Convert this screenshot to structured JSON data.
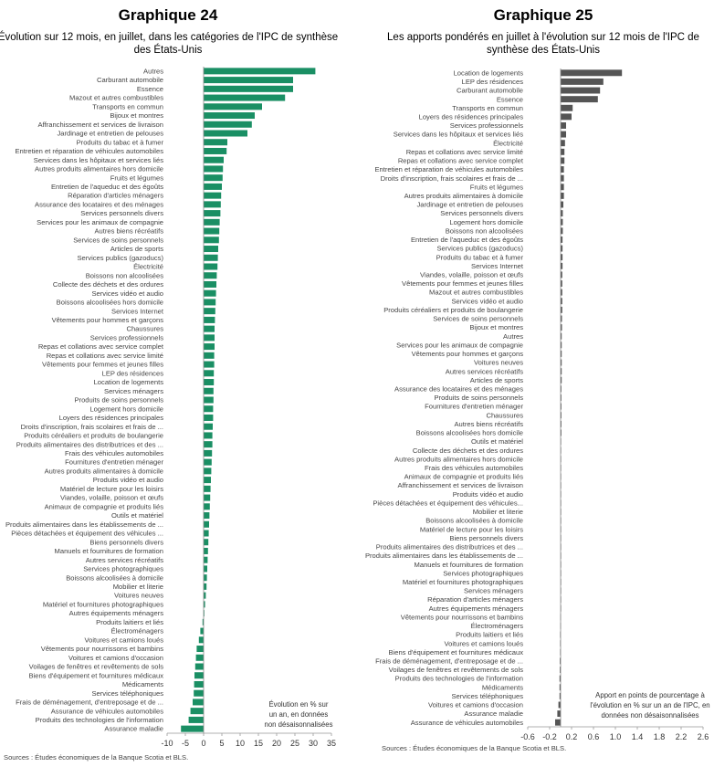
{
  "colors": {
    "chart24_bar": "#1a8f64",
    "chart25_bar": "#555555",
    "axis": "#999999"
  },
  "chart_data": [
    {
      "type": "bar",
      "orientation": "horizontal",
      "title": "Graphique 24",
      "subtitle": [
        "Évolution sur 12 mois, en juillet, dans les catégories de l'IPC de synthèse",
        "des États-Unis"
      ],
      "note": [
        "Évolution en % sur",
        "un an, en données",
        "non désaisonnalisées"
      ],
      "source": "Sources : Études économiques de la Banque Scotia et BLS.",
      "xlim": [
        -10,
        35
      ],
      "xticks": [
        -10,
        -5,
        0,
        5,
        10,
        15,
        20,
        25,
        30,
        35
      ],
      "categories": [
        "Autres",
        "Carburant automobile",
        "Essence",
        "Mazout et autres combustibles",
        "Transports en commun",
        "Bijoux et montres",
        "Affranchissement et services de livraison",
        "Jardinage et entretien de pelouses",
        "Produits du tabac et à fumer",
        "Entretien et réparation de véhicules automobiles",
        "Services dans les hôpitaux et services liés",
        "Autres produits alimentaires hors domicile",
        "Fruits et légumes",
        "Entretien de l'aqueduc et des égoûts",
        "Réparation d'articles ménagers",
        "Assurance des locataires et des ménages",
        "Services personnels divers",
        "Services pour les animaux de compagnie",
        "Autres biens récréatifs",
        "Services de soins personnels",
        "Articles de sports",
        "Services publics (gazoducs)",
        "Électricité",
        "Boissons non alcoolisées",
        "Collecte des déchets et des ordures",
        "Services vidéo et audio",
        "Boissons alcoolisées hors domicile",
        "Services Internet",
        "Vêtements pour hommes et garçons",
        "Chaussures",
        "Services professionnels",
        "Repas et collations avec service complet",
        "Repas et collations avec service limité",
        "Vêtements pour femmes et jeunes filles",
        "LEP des résidences",
        "Location de logements",
        "Services ménagers",
        "Produits de soins personnels",
        "Logement hors domicile",
        "Loyers des résidences principales",
        "Droits d'inscription, frais scolaires et frais de ...",
        "Produits céréaliers et produits de boulangerie",
        "Produits alimentaires des distributrices et des ...",
        "Frais des véhicules automobiles",
        "Fournitures d'entretien ménager",
        "Autres produits alimentaires à domicile",
        "Produits vidéo et audio",
        "Matériel de lecture pour les loisirs",
        "Viandes, volaille, poisson et œufs",
        "Animaux de compagnie et produits liés",
        "Outils et matériel",
        "Produits alimentaires dans les établissements de ...",
        "Pièces détachées et équipement des véhicules ...",
        "Biens personnels divers",
        "Manuels et fournitures de formation",
        "Autres services récréatifs",
        "Services photographiques",
        "Boissons alcoolisées à domicile",
        "Mobilier et literie",
        "Voitures neuves",
        "Matériel et fournitures photographiques",
        "Autres équipements ménagers",
        "Produits laitiers et liés",
        "Électroménagers",
        "Voitures et camions loués",
        "Vêtements pour nourrissons et bambins",
        "Voitures et camions d'occasion",
        "Voilages de fenêtres et revêtements de sols",
        "Biens d'équipement et fournitures médicaux",
        "Médicaments",
        "Services téléphoniques",
        "Frais de déménagement, d'entreposage et de ...",
        "Assurance de véhicules automobiles",
        "Produits des technologies de l'information",
        "Assurance maladie"
      ],
      "values": [
        30.6,
        24.5,
        24.5,
        22.3,
        16.0,
        14.0,
        13.2,
        12.0,
        6.5,
        6.3,
        5.5,
        5.3,
        5.2,
        5.0,
        4.8,
        4.7,
        4.6,
        4.4,
        4.3,
        4.2,
        4.0,
        3.9,
        3.8,
        3.6,
        3.5,
        3.4,
        3.3,
        3.2,
        3.1,
        3.0,
        3.0,
        3.0,
        2.9,
        2.9,
        2.8,
        2.8,
        2.7,
        2.7,
        2.6,
        2.6,
        2.5,
        2.4,
        2.4,
        2.3,
        2.2,
        2.1,
        2.0,
        1.9,
        1.8,
        1.7,
        1.6,
        1.5,
        1.4,
        1.3,
        1.2,
        1.1,
        1.0,
        0.9,
        0.8,
        0.6,
        0.4,
        0.2,
        -0.3,
        -0.9,
        -1.3,
        -1.9,
        -2.1,
        -2.3,
        -2.5,
        -2.6,
        -2.7,
        -3.0,
        -3.6,
        -4.1,
        -6.2
      ]
    },
    {
      "type": "bar",
      "orientation": "horizontal",
      "title": "Graphique 25",
      "subtitle": [
        "Les apports pondérés en juillet à l'évolution sur 12 mois de l'IPC de",
        "synthèse des États-Unis"
      ],
      "note": [
        "Apport en points de pourcentage à",
        "l'évolution en % sur un an de l'IPC, en",
        "données non désaisonnalisées"
      ],
      "source": "Sources : Études économiques de la Banque Scotia et BLS.",
      "xlim": [
        -0.6,
        2.6
      ],
      "xticks": [
        "-0.6",
        "-0.2",
        "0.2",
        "0.6",
        "1.0",
        "1.4",
        "1.8",
        "2.2",
        "2.6"
      ],
      "categories": [
        "Location de logements",
        "LEP des résidences",
        "Carburant automobile",
        "Essence",
        "Transports en commun",
        "Loyers des résidences principales",
        "Services professionnels",
        "Services dans les hôpitaux et services liés",
        "Électricité",
        "Repas et collations avec service limité",
        "Repas et collations avec service complet",
        "Entretien et réparation de véhicules automobiles",
        "Droits d'inscription, frais scolaires et frais de ...",
        "Fruits et légumes",
        "Autres produits alimentaires à domicile",
        "Jardinage et entretien de pelouses",
        "Services personnels divers",
        "Logement hors domicile",
        "Boissons non alcoolisées",
        "Entretien de l'aqueduc et des égoûts",
        "Services publics (gazoducs)",
        "Produits du tabac et à fumer",
        "Services Internet",
        "Viandes, volaille, poisson et œufs",
        "Vêtements pour femmes et jeunes filles",
        "Mazout et autres combustibles",
        "Services vidéo et audio",
        "Produits céréaliers et produits de boulangerie",
        "Services de soins personnels",
        "Bijoux et montres",
        "Autres",
        "Services pour les animaux de compagnie",
        "Vêtements pour hommes et garçons",
        "Voitures neuves",
        "Autres services récréatifs",
        "Articles de sports",
        "Assurance des locataires et des ménages",
        "Produits de soins personnels",
        "Fournitures d'entretien ménager",
        "Chaussures",
        "Autres biens récréatifs",
        "Boissons alcoolisées hors domicile",
        "Outils et matériel",
        "Collecte des déchets et des ordures",
        "Autres produits alimentaires hors domicile",
        "Frais des véhicules automobiles",
        "Animaux de compagnie et produits liés",
        "Affranchissement et services de livraison",
        "Produits vidéo et audio",
        "Pièces détachées et équipement des véhicules...",
        "Mobilier et literie",
        "Boissons alcoolisées à domicile",
        "Matériel de lecture pour les loisirs",
        "Biens personnels divers",
        "Produits alimentaires des distributrices et des ...",
        "Produits alimentaires dans les établissements de ...",
        "Manuels et fournitures de formation",
        "Services photographiques",
        "Matériel et fournitures photographiques",
        "Services ménagers",
        "Réparation d'articles ménagers",
        "Autres équipements ménagers",
        "Vêtements pour nourrissons et bambins",
        "Électroménagers",
        "Produits laitiers et liés",
        "Voitures et camions loués",
        "Biens d'équipement et fournitures médicaux",
        "Frais de déménagement, d'entreposage et de ...",
        "Voilages de fenêtres et revêtements de sols",
        "Produits des technologies de l'information",
        "Médicaments",
        "Services téléphoniques",
        "Voitures et camions d'occasion",
        "Assurance maladie",
        "Assurance de véhicules automobiles"
      ],
      "values": [
        1.12,
        0.78,
        0.72,
        0.68,
        0.22,
        0.2,
        0.1,
        0.1,
        0.08,
        0.07,
        0.07,
        0.06,
        0.06,
        0.06,
        0.06,
        0.05,
        0.04,
        0.04,
        0.04,
        0.035,
        0.035,
        0.035,
        0.035,
        0.03,
        0.03,
        0.03,
        0.03,
        0.03,
        0.025,
        0.025,
        0.02,
        0.02,
        0.02,
        0.02,
        0.02,
        0.02,
        0.015,
        0.015,
        0.015,
        0.015,
        0.015,
        0.015,
        0.01,
        0.01,
        0.01,
        0.01,
        0.01,
        0.01,
        0.01,
        0.01,
        0.01,
        0.005,
        0.005,
        0.005,
        0.005,
        0.005,
        0.005,
        0.005,
        0.005,
        0.005,
        0.005,
        0.005,
        -0.005,
        -0.005,
        -0.01,
        -0.01,
        -0.01,
        -0.015,
        -0.015,
        -0.02,
        -0.02,
        -0.02,
        -0.04,
        -0.06,
        -0.1
      ]
    }
  ]
}
